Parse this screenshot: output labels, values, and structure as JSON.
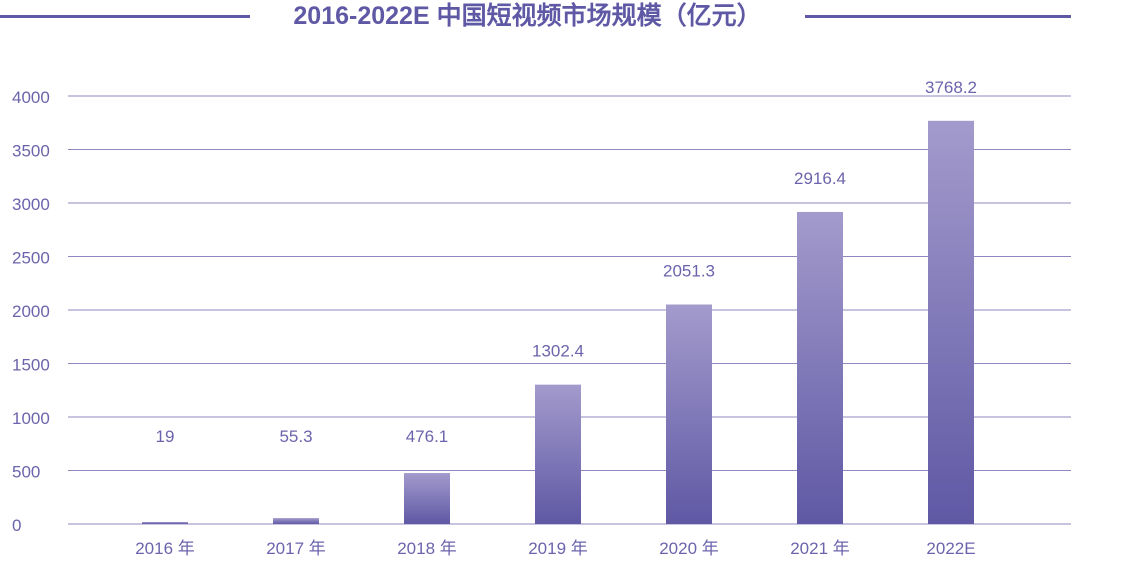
{
  "chart_data": {
    "type": "bar",
    "title": "2016-2022E 中国短视频市场规模（亿元）",
    "categories": [
      "2016 年",
      "2017 年",
      "2018 年",
      "2019 年",
      "2020 年",
      "2021 年",
      "2022E"
    ],
    "values": [
      19,
      55.3,
      476.1,
      1302.4,
      2051.3,
      2916.4,
      3768.2
    ],
    "value_labels": [
      "19",
      "55.3",
      "476.1",
      "1302.4",
      "2051.3",
      "2916.4",
      "3768.2"
    ],
    "yticks": [
      0,
      500,
      1000,
      1500,
      2000,
      2500,
      3000,
      3500,
      4000
    ],
    "ylim": [
      0,
      4000
    ],
    "xlabel": "",
    "ylabel": "",
    "grid": true,
    "legend": "none",
    "colors": {
      "title": "#5f58a4",
      "bar_top": "#a39bcc",
      "bar_bottom": "#5f58a4",
      "grid": "#8f89c1",
      "text": "#6b64ac"
    }
  }
}
